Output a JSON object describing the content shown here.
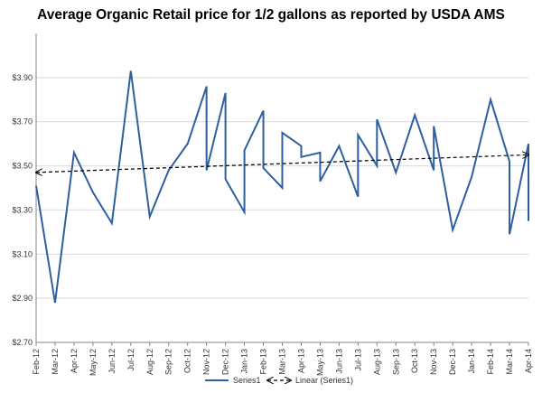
{
  "chart_data": {
    "type": "line",
    "title": "Average Organic Retail price for 1/2 gallons as reported by USDA AMS",
    "xlabel": "",
    "ylabel": "",
    "ylim": [
      2.7,
      4.1
    ],
    "yticks": [
      "$2.70",
      "$2.90",
      "$3.10",
      "$3.30",
      "$3.50",
      "$3.70",
      "$3.90"
    ],
    "categories": [
      "Feb-12",
      "Mar-12",
      "Apr-12",
      "May-12",
      "Jun-12",
      "Jul-12",
      "Aug-12",
      "Sep-12",
      "Oct-12",
      "Nov-12",
      "Dec-12",
      "Jan-13",
      "Feb-13",
      "Mar-13",
      "Apr-13",
      "May-13",
      "Jun-13",
      "Jul-13",
      "Aug-13",
      "Sep-13",
      "Oct-13",
      "Nov-13",
      "Dec-13",
      "Jan-14",
      "Feb-14",
      "Mar-14",
      "Apr-14"
    ],
    "series": [
      {
        "name": "Series1",
        "color": "#2E5F9E",
        "points": [
          [
            "Feb-12",
            3.41
          ],
          [
            "Mar-12",
            2.88
          ],
          [
            "Apr-12",
            3.56
          ],
          [
            "May-12",
            3.38
          ],
          [
            "Jun-12",
            3.24
          ],
          [
            "Jul-12",
            3.93
          ],
          [
            "Aug-12",
            3.27
          ],
          [
            "Sep-12",
            3.48
          ],
          [
            "Oct-12",
            3.6
          ],
          [
            "Nov-12",
            3.86
          ],
          [
            "Nov-12",
            3.48
          ],
          [
            "Dec-12",
            3.83
          ],
          [
            "Dec-12",
            3.44
          ],
          [
            "Jan-13",
            3.29
          ],
          [
            "Jan-13",
            3.57
          ],
          [
            "Feb-13",
            3.75
          ],
          [
            "Feb-13",
            3.49
          ],
          [
            "Mar-13",
            3.4
          ],
          [
            "Mar-13",
            3.65
          ],
          [
            "Apr-13",
            3.59
          ],
          [
            "Apr-13",
            3.54
          ],
          [
            "May-13",
            3.56
          ],
          [
            "May-13",
            3.43
          ],
          [
            "Jun-13",
            3.59
          ],
          [
            "Jul-13",
            3.36
          ],
          [
            "Jul-13",
            3.64
          ],
          [
            "Aug-13",
            3.5
          ],
          [
            "Aug-13",
            3.71
          ],
          [
            "Sep-13",
            3.47
          ],
          [
            "Oct-13",
            3.73
          ],
          [
            "Nov-13",
            3.48
          ],
          [
            "Nov-13",
            3.68
          ],
          [
            "Dec-13",
            3.21
          ],
          [
            "Jan-14",
            3.45
          ],
          [
            "Feb-14",
            3.8
          ],
          [
            "Mar-14",
            3.52
          ],
          [
            "Mar-14",
            3.19
          ],
          [
            "Apr-14",
            3.6
          ],
          [
            "Apr-14",
            3.25
          ]
        ]
      },
      {
        "name": "Linear (Series1)",
        "style": "dashed",
        "color": "#000000",
        "arrows": "both",
        "points": [
          [
            "Feb-12",
            3.47
          ],
          [
            "Apr-14",
            3.55
          ]
        ]
      }
    ],
    "grid": "horizontal",
    "legend": "bottom"
  }
}
